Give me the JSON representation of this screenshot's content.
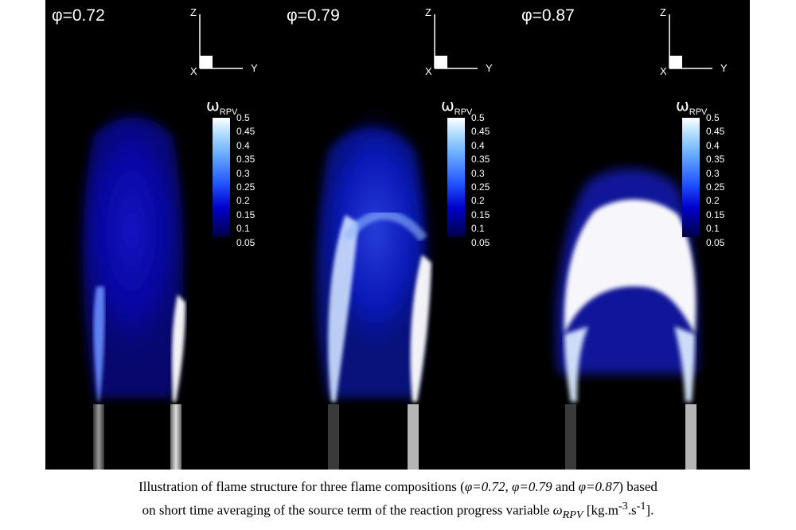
{
  "panels": [
    {
      "phi_label": "φ=0.72",
      "intensity": 0.35
    },
    {
      "phi_label": "φ=0.79",
      "intensity": 0.65
    },
    {
      "phi_label": "φ=0.87",
      "intensity": 1.0
    }
  ],
  "axes": {
    "z": "Z",
    "y": "Y",
    "x": "X"
  },
  "legend": {
    "symbol": "ω",
    "subscript": "RPV",
    "ticks": [
      "0.5",
      "0.45",
      "0.4",
      "0.35",
      "0.3",
      "0.25",
      "0.2",
      "0.15",
      "0.1",
      "0.05"
    ]
  },
  "colors": {
    "background": "#000000",
    "flame_low": "#0000ff",
    "flame_high": "#ffffff"
  },
  "caption": {
    "line1_prefix": "Illustration of flame structure for three flame compositions (",
    "phi1": "φ=0.72",
    "sep1": ", ",
    "phi2": "φ=0.79",
    "and": " and ",
    "phi3": "φ=0.87",
    "line1_suffix": ") based",
    "line2_prefix": "on short time averaging of the source term of the reaction progress variable ",
    "omega": "ω",
    "omega_sub": "RPV",
    "units_prefix": " [kg.m",
    "units_exp1": "-3",
    "units_mid": ".s",
    "units_exp2": "-1",
    "units_suffix": "]."
  }
}
